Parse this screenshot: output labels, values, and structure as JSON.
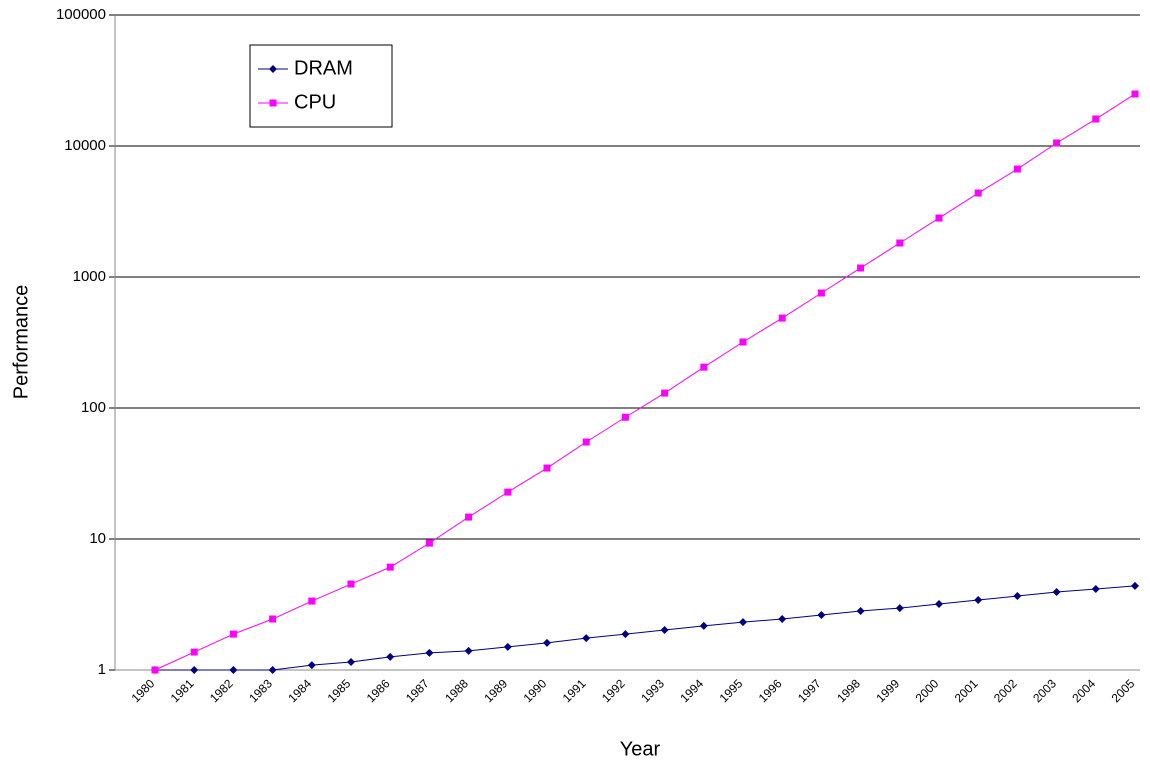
{
  "chart_data": {
    "type": "line",
    "xlabel": "Year",
    "ylabel": "Performance",
    "categories": [
      "1980",
      "1981",
      "1982",
      "1983",
      "1984",
      "1985",
      "1986",
      "1987",
      "1988",
      "1989",
      "1990",
      "1991",
      "1992",
      "1993",
      "1994",
      "1995",
      "1996",
      "1997",
      "1998",
      "1999",
      "2000",
      "2001",
      "2002",
      "2003",
      "2004",
      "2005"
    ],
    "series": [
      {
        "name": "DRAM",
        "color": "#000080",
        "marker": "diamond",
        "values": [
          1,
          1,
          1,
          1,
          1.09,
          1.15,
          1.26,
          1.35,
          1.4,
          1.5,
          1.61,
          1.75,
          1.88,
          2.02,
          2.17,
          2.32,
          2.45,
          2.63,
          2.82,
          2.97,
          3.19,
          3.42,
          3.67,
          3.94,
          4.15,
          4.39
        ]
      },
      {
        "name": "CPU",
        "color": "#ff00ff",
        "marker": "square",
        "values": [
          1,
          1.37,
          1.88,
          2.45,
          3.36,
          4.53,
          6.1,
          9.3,
          14.7,
          22.8,
          34.8,
          55,
          85,
          130,
          205,
          319,
          486,
          755,
          1172,
          1818,
          2819,
          4374,
          6670,
          10540,
          16070,
          24950
        ]
      }
    ],
    "ylim": [
      1,
      100000
    ],
    "yticks": [
      1,
      10,
      100,
      1000,
      10000,
      100000
    ],
    "log_y": true,
    "grid": true,
    "legend": "upper left"
  }
}
